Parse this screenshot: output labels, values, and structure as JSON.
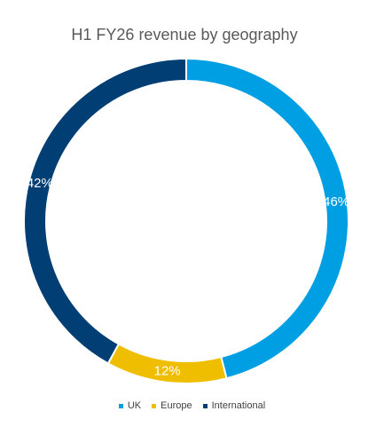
{
  "chart_data": {
    "type": "pie",
    "donut": true,
    "title": "H1 FY26 revenue by geography",
    "categories": [
      "UK",
      "Europe",
      "International"
    ],
    "values": [
      46,
      12,
      42
    ],
    "labels": [
      "46%",
      "12%",
      "42%"
    ],
    "colors": [
      "#009FE3",
      "#F0BE00",
      "#003E74"
    ],
    "legend_position": "bottom"
  }
}
